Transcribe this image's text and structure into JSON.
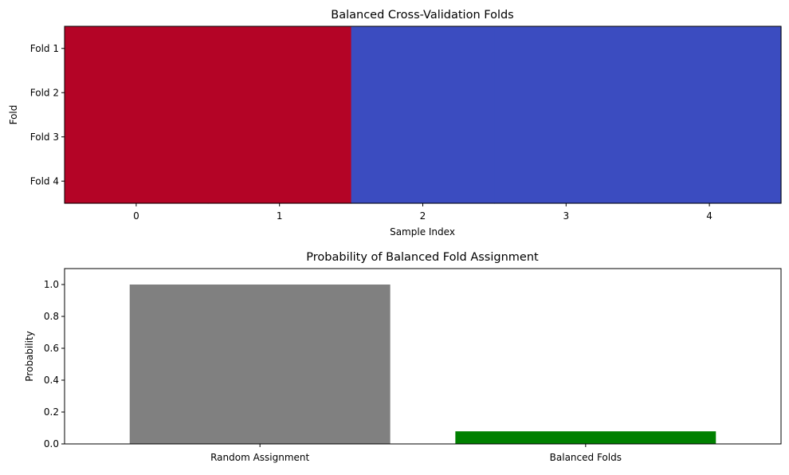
{
  "chart_data": [
    {
      "type": "heatmap",
      "title": "Balanced Cross-Validation Folds",
      "xlabel": "Sample Index",
      "ylabel": "Fold",
      "x_ticks": [
        "0",
        "1",
        "2",
        "3",
        "4"
      ],
      "y_ticks": [
        "Fold 1",
        "Fold 2",
        "Fold 3",
        "Fold 4"
      ],
      "xlim": [
        -0.5,
        4.5
      ],
      "ylim": [
        -0.5,
        3.5
      ],
      "grid": false,
      "colormap": "coolwarm",
      "values": [
        [
          1,
          1,
          0,
          0,
          0
        ],
        [
          1,
          1,
          0,
          0,
          0
        ],
        [
          1,
          1,
          0,
          0,
          0
        ],
        [
          1,
          1,
          0,
          0,
          0
        ]
      ],
      "colors": {
        "high": "#b40426",
        "low": "#3b4cc0"
      }
    },
    {
      "type": "bar",
      "title": "Probability of Balanced Fold Assignment",
      "xlabel": "",
      "ylabel": "Probability",
      "categories": [
        "Random Assignment",
        "Balanced Folds"
      ],
      "values": [
        1.0,
        0.079
      ],
      "colors": [
        "#808080",
        "#008000"
      ],
      "ylim": [
        0,
        1.1
      ],
      "y_ticks": [
        "0.0",
        "0.2",
        "0.4",
        "0.6",
        "0.8",
        "1.0"
      ],
      "y_tick_values": [
        0,
        0.2,
        0.4,
        0.6,
        0.8,
        1.0
      ],
      "grid": false
    }
  ]
}
